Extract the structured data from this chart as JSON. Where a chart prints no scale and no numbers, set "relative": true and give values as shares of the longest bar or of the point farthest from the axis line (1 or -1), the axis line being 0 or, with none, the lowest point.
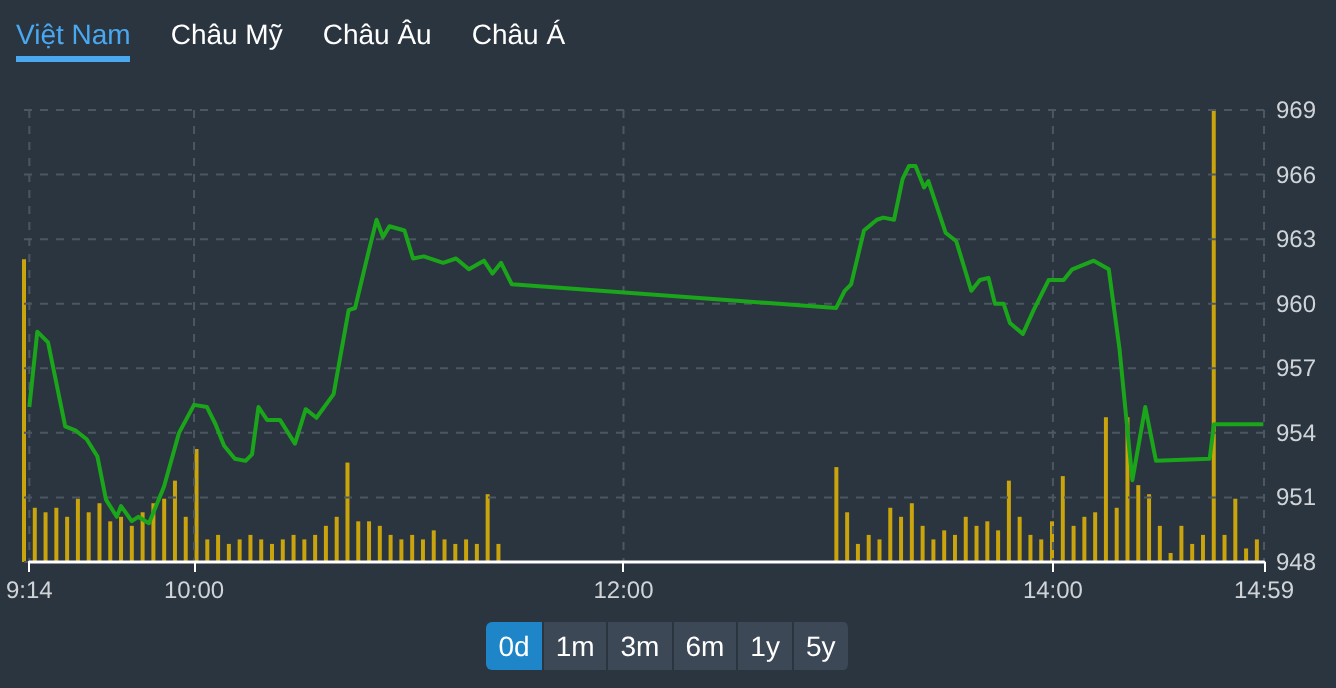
{
  "chart_data": [
    {
      "type": "other",
      "annotations": [
        "Việt Nam",
        "Châu Mỹ",
        "Châu Âu",
        "Châu Á"
      ]
    },
    {
      "type": "line",
      "color": "#1aa51a",
      "x": [
        9.233,
        9.27,
        9.32,
        9.4,
        9.45,
        9.5,
        9.55,
        9.59,
        9.64,
        9.66,
        9.71,
        9.74,
        9.79,
        9.86,
        9.93,
        10.0,
        10.06,
        10.1,
        10.14,
        10.19,
        10.24,
        10.27,
        10.3,
        10.34,
        10.4,
        10.47,
        10.52,
        10.57,
        10.65,
        10.72,
        10.75,
        10.81,
        10.85,
        10.88,
        10.91,
        10.98,
        11.02,
        11.07,
        11.16,
        11.22,
        11.28,
        11.35,
        11.39,
        11.43,
        11.48,
        12.99,
        13.03,
        13.06,
        13.12,
        13.18,
        13.21,
        13.26,
        13.3,
        13.33,
        13.36,
        13.4,
        13.42,
        13.5,
        13.55,
        13.62,
        13.66,
        13.7,
        13.73,
        13.77,
        13.8,
        13.86,
        13.91,
        13.98,
        14.05,
        14.09,
        14.19,
        14.26,
        14.31,
        14.37,
        14.43,
        14.48,
        14.73,
        14.75,
        14.98
      ],
      "values": [
        955.2,
        958.7,
        958.2,
        954.3,
        954.1,
        953.7,
        952.9,
        950.9,
        950.1,
        950.6,
        949.9,
        950.1,
        949.8,
        951.5,
        954.0,
        955.3,
        955.2,
        954.4,
        953.4,
        952.8,
        952.7,
        953.0,
        955.2,
        954.6,
        954.6,
        953.5,
        955.1,
        954.7,
        955.8,
        959.7,
        959.8,
        962.3,
        963.9,
        963.1,
        963.6,
        963.4,
        962.1,
        962.2,
        961.9,
        962.1,
        961.6,
        962.0,
        961.4,
        961.9,
        960.9,
        959.8,
        960.6,
        960.9,
        963.4,
        963.9,
        964.0,
        963.9,
        965.8,
        966.4,
        966.4,
        965.4,
        965.7,
        963.3,
        962.9,
        960.6,
        961.1,
        961.2,
        960.0,
        960.0,
        959.1,
        958.6,
        959.7,
        961.1,
        961.1,
        961.6,
        962.0,
        961.6,
        957.9,
        951.8,
        955.2,
        952.7,
        952.8,
        954.4,
        954.4
      ],
      "xlim": [
        9.233,
        14.983
      ],
      "xticks": [
        {
          "value": 9.233,
          "label": "9:14"
        },
        {
          "value": 10,
          "label": "10:00"
        },
        {
          "value": 12,
          "label": "12:00"
        },
        {
          "value": 14,
          "label": "14:00"
        },
        {
          "value": 14.983,
          "label": "14:59"
        }
      ],
      "ylim": [
        948,
        969
      ],
      "yticks": [
        948,
        951,
        954,
        957,
        960,
        963,
        966,
        969
      ],
      "grid": true
    },
    {
      "type": "bar",
      "relative": true,
      "color": "#c9a40c",
      "xlim": [
        9.233,
        14.983
      ],
      "x": [
        9.233,
        9.283,
        9.333,
        9.383,
        9.433,
        9.483,
        9.533,
        9.583,
        9.633,
        9.683,
        9.733,
        9.783,
        9.833,
        9.883,
        9.933,
        9.983,
        10.033,
        10.083,
        10.133,
        10.183,
        10.233,
        10.283,
        10.333,
        10.383,
        10.433,
        10.483,
        10.533,
        10.583,
        10.633,
        10.683,
        10.733,
        10.783,
        10.833,
        10.883,
        10.933,
        10.983,
        11.033,
        11.083,
        11.133,
        11.183,
        11.233,
        11.283,
        11.333,
        11.383,
        11.433,
        13.0,
        13.05,
        13.1,
        13.15,
        13.2,
        13.25,
        13.3,
        13.35,
        13.4,
        13.45,
        13.5,
        13.55,
        13.6,
        13.65,
        13.7,
        13.75,
        13.8,
        13.85,
        13.9,
        13.95,
        14.0,
        14.05,
        14.1,
        14.15,
        14.2,
        14.25,
        14.3,
        14.35,
        14.4,
        14.45,
        14.5,
        14.55,
        14.6,
        14.65,
        14.7,
        14.75,
        14.8,
        14.85,
        14.9,
        14.95
      ],
      "values": [
        0.67,
        0.12,
        0.11,
        0.12,
        0.1,
        0.14,
        0.11,
        0.13,
        0.09,
        0.1,
        0.08,
        0.11,
        0.13,
        0.14,
        0.18,
        0.1,
        0.25,
        0.05,
        0.06,
        0.04,
        0.05,
        0.06,
        0.05,
        0.04,
        0.05,
        0.06,
        0.05,
        0.06,
        0.08,
        0.1,
        0.22,
        0.09,
        0.09,
        0.08,
        0.06,
        0.05,
        0.06,
        0.05,
        0.07,
        0.05,
        0.04,
        0.05,
        0.04,
        0.15,
        0.04,
        0.21,
        0.11,
        0.04,
        0.06,
        0.05,
        0.12,
        0.1,
        0.13,
        0.08,
        0.05,
        0.07,
        0.06,
        0.1,
        0.08,
        0.09,
        0.07,
        0.18,
        0.1,
        0.06,
        0.05,
        0.09,
        0.19,
        0.08,
        0.1,
        0.11,
        0.32,
        0.12,
        0.32,
        0.17,
        0.15,
        0.08,
        0.02,
        0.08,
        0.04,
        0.06,
        1,
        0.06,
        0.14,
        0.03,
        0.05
      ]
    },
    {
      "type": "other",
      "annotations": [
        "0d",
        "1m",
        "3m",
        "6m",
        "1y",
        "5y"
      ]
    }
  ]
}
